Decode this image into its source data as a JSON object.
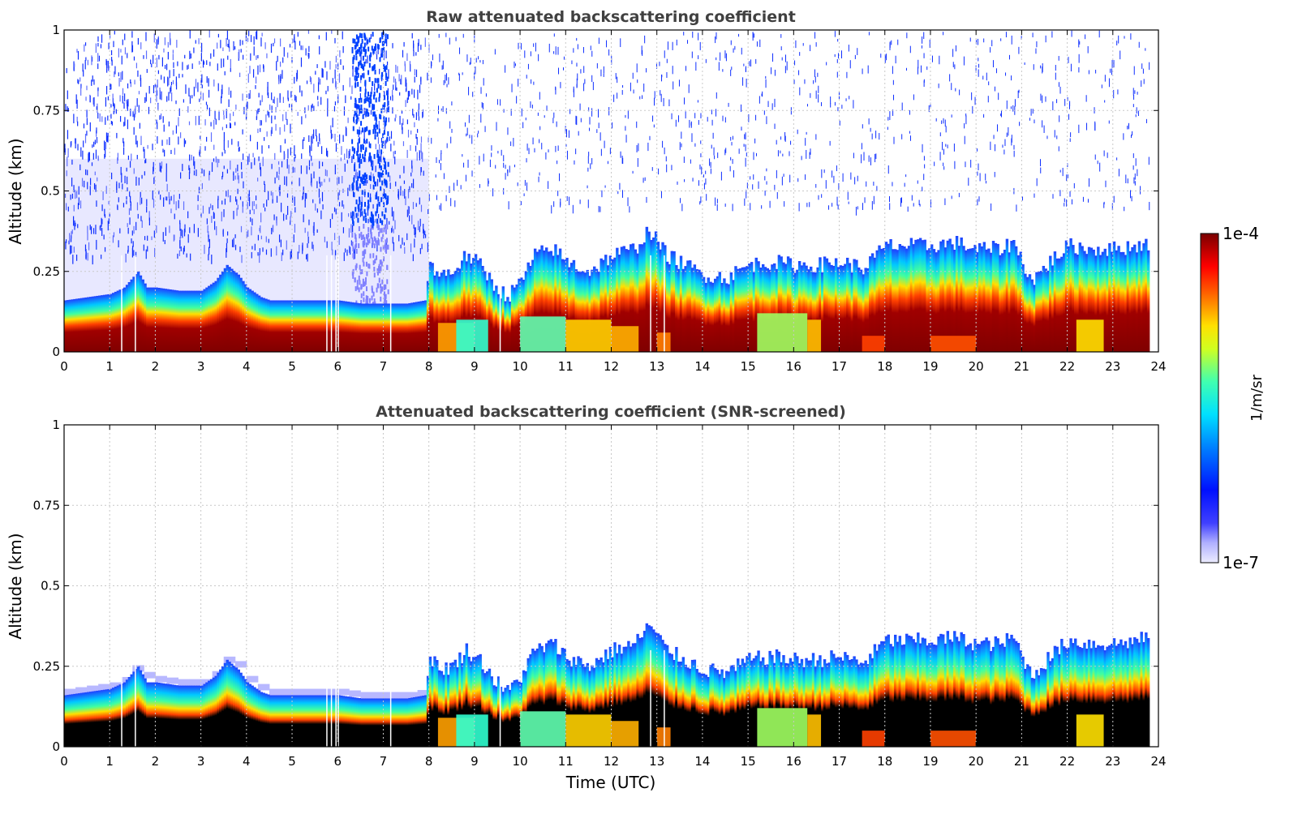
{
  "chart_data": [
    {
      "type": "heatmap",
      "title": "Raw attenuated backscattering coefficient",
      "xlabel": "",
      "ylabel": "Altitude (km)",
      "xlim": [
        0,
        24
      ],
      "ylim": [
        0,
        1
      ],
      "x_ticks": [
        "0",
        "1",
        "2",
        "3",
        "4",
        "5",
        "6",
        "7",
        "8",
        "9",
        "10",
        "11",
        "12",
        "13",
        "14",
        "15",
        "16",
        "17",
        "18",
        "19",
        "20",
        "21",
        "22",
        "23",
        "24"
      ],
      "y_ticks": [
        "0",
        "0.25",
        "0.5",
        "0.75",
        "1"
      ],
      "grid": true,
      "layer_top_km": [
        [
          0,
          0.16
        ],
        [
          0.5,
          0.17
        ],
        [
          1,
          0.18
        ],
        [
          1.3,
          0.2
        ],
        [
          1.6,
          0.25
        ],
        [
          1.8,
          0.2
        ],
        [
          2,
          0.2
        ],
        [
          2.5,
          0.19
        ],
        [
          3,
          0.19
        ],
        [
          3.3,
          0.22
        ],
        [
          3.55,
          0.27
        ],
        [
          3.8,
          0.24
        ],
        [
          4,
          0.2
        ],
        [
          4.3,
          0.17
        ],
        [
          4.5,
          0.16
        ],
        [
          5,
          0.16
        ],
        [
          5.5,
          0.16
        ],
        [
          6,
          0.16
        ],
        [
          6.5,
          0.15
        ],
        [
          7,
          0.15
        ],
        [
          7.5,
          0.15
        ],
        [
          7.9,
          0.16
        ],
        [
          8,
          0.28
        ],
        [
          8.2,
          0.24
        ],
        [
          8.5,
          0.25
        ],
        [
          8.8,
          0.3
        ],
        [
          9.1,
          0.27
        ],
        [
          9.4,
          0.21
        ],
        [
          9.7,
          0.17
        ],
        [
          10,
          0.22
        ],
        [
          10.3,
          0.3
        ],
        [
          10.7,
          0.32
        ],
        [
          11,
          0.28
        ],
        [
          11.5,
          0.25
        ],
        [
          12,
          0.3
        ],
        [
          12.5,
          0.32
        ],
        [
          12.8,
          0.38
        ],
        [
          13.2,
          0.3
        ],
        [
          13.6,
          0.27
        ],
        [
          14,
          0.24
        ],
        [
          14.5,
          0.23
        ],
        [
          15,
          0.27
        ],
        [
          15.5,
          0.28
        ],
        [
          16,
          0.27
        ],
        [
          16.5,
          0.27
        ],
        [
          17,
          0.28
        ],
        [
          17.5,
          0.26
        ],
        [
          18,
          0.33
        ],
        [
          18.5,
          0.33
        ],
        [
          19,
          0.33
        ],
        [
          19.5,
          0.34
        ],
        [
          20,
          0.32
        ],
        [
          20.5,
          0.32
        ],
        [
          20.8,
          0.34
        ],
        [
          21.2,
          0.22
        ],
        [
          21.6,
          0.28
        ],
        [
          22,
          0.33
        ],
        [
          22.5,
          0.32
        ],
        [
          23,
          0.32
        ],
        [
          23.5,
          0.33
        ],
        [
          23.8,
          0.34
        ]
      ]
    },
    {
      "type": "heatmap",
      "title": "Attenuated backscattering coefficient (SNR-screened)",
      "xlabel": "Time (UTC)",
      "ylabel": "Altitude (km)",
      "xlim": [
        0,
        24
      ],
      "ylim": [
        0,
        1
      ],
      "x_ticks": [
        "0",
        "1",
        "2",
        "3",
        "4",
        "5",
        "6",
        "7",
        "8",
        "9",
        "10",
        "11",
        "12",
        "13",
        "14",
        "15",
        "16",
        "17",
        "18",
        "19",
        "20",
        "21",
        "22",
        "23",
        "24"
      ],
      "y_ticks": [
        "0",
        "0.25",
        "0.5",
        "0.75",
        "1"
      ],
      "grid": true
    }
  ],
  "colorbar": {
    "max_label": "1e-4",
    "min_label": "1e-7",
    "label": "1/m/sr",
    "scale": "log",
    "colormap": "jet"
  },
  "colors": {
    "dark_red": "#800000",
    "red": "#ff2000",
    "yellow": "#f0f000",
    "cyan": "#00e0ff",
    "blue": "#0028ff",
    "faint_blue": "#e8e8ff",
    "masked": "#000000"
  }
}
